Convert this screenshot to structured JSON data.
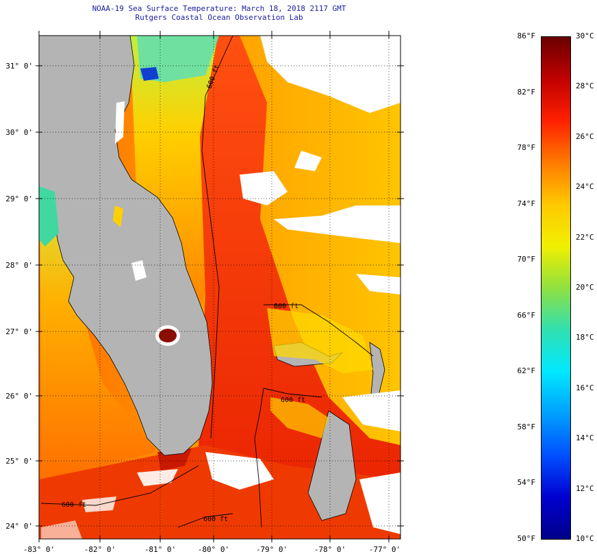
{
  "title": {
    "line1": "NOAA-19 Sea Surface Temperature:  March 18, 2018 2117 GMT",
    "line2": "Rutgers Coastal Ocean Observation Lab"
  },
  "map": {
    "lat_labels": [
      "31° 0'",
      "30° 0'",
      "29° 0'",
      "28° 0'",
      "27° 0'",
      "26° 0'",
      "25° 0'",
      "24° 0'"
    ],
    "lon_labels": [
      "-83° 0'",
      "-82° 0'",
      "-81° 0'",
      "-80° 0'",
      "-79° 0'",
      "-78° 0'",
      "-77° 0'"
    ],
    "contour_labels": [
      "600 ft",
      "600 ft",
      "600 ft",
      "600 ft",
      "600 ft"
    ],
    "colors": {
      "land": "#b4b4b4",
      "cloud": "#ffffff",
      "contour": "#000000"
    }
  },
  "colorbar": {
    "fahrenheit": [
      "86°F",
      "82°F",
      "78°F",
      "74°F",
      "70°F",
      "66°F",
      "62°F",
      "58°F",
      "54°F",
      "50°F"
    ],
    "celsius": [
      "30°C",
      "28°C",
      "26°C",
      "24°C",
      "22°C",
      "20°C",
      "18°C",
      "16°C",
      "14°C",
      "12°C",
      "10°C"
    ],
    "stops": [
      "#6a0000",
      "#c00000",
      "#ff2000",
      "#ff7a00",
      "#ffc800",
      "#f0f000",
      "#90e040",
      "#30e0b0",
      "#00e8ff",
      "#00a0ff",
      "#0050ff",
      "#0000d0",
      "#00008a"
    ]
  }
}
